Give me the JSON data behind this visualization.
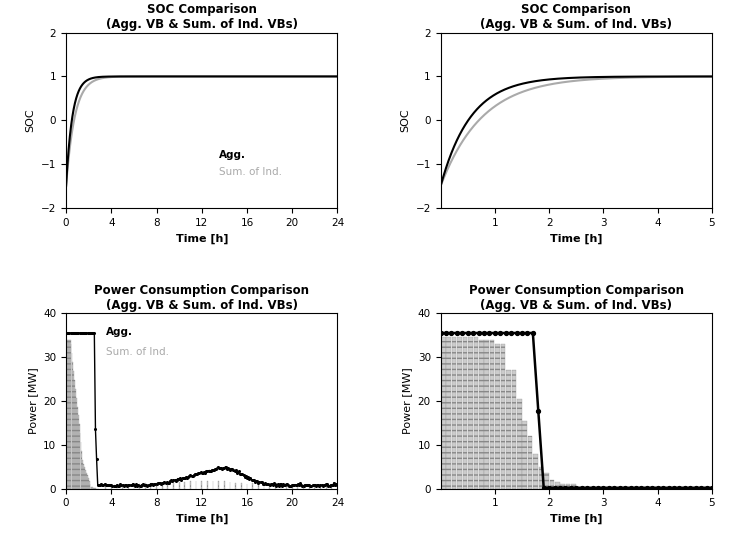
{
  "title_soc": "SOC Comparison\n(Agg. VB & Sum. of Ind. VBs)",
  "title_power": "Power Consumption Comparison\n(Agg. VB & Sum. of Ind. VBs)",
  "xlabel": "Time [h]",
  "ylabel_soc": "SOC",
  "ylabel_power": "Power [MW]",
  "soc_ylim": [
    -2,
    2
  ],
  "power_ylim": [
    0,
    40
  ],
  "soc_yticks": [
    -2,
    -1,
    0,
    1,
    2
  ],
  "power_yticks": [
    0,
    10,
    20,
    30,
    40
  ],
  "color_agg": "#000000",
  "color_ind": "#aaaaaa",
  "bar_color": "#cccccc",
  "legend_agg": "Agg.",
  "legend_ind": "Sum. of Ind.",
  "panel_a_xticks": [
    0,
    4,
    8,
    12,
    16,
    20,
    24
  ],
  "panel_b_xticks": [
    1,
    2,
    3,
    4,
    5
  ],
  "panel_c_xticks": [
    0,
    4,
    8,
    12,
    16,
    20,
    24
  ],
  "panel_d_xticks": [
    1,
    2,
    3,
    4,
    5
  ]
}
